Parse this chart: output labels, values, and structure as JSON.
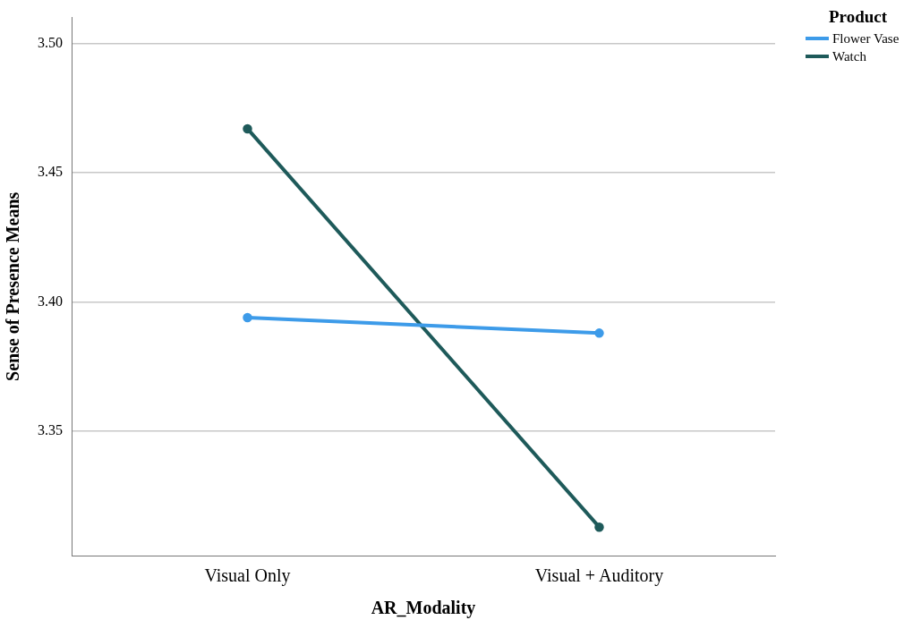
{
  "chart_data": {
    "type": "line",
    "xlabel": "AR_Modality",
    "ylabel": "Sense of Presence Means",
    "legend_title": "Product",
    "categories": [
      "Visual Only",
      "Visual + Auditory"
    ],
    "series": [
      {
        "name": "Flower Vase",
        "color": "#3d9be9",
        "values": [
          3.394,
          3.388
        ]
      },
      {
        "name": "Watch",
        "color": "#1e5a5a",
        "values": [
          3.467,
          3.313
        ]
      }
    ],
    "ylim": [
      3.302,
      3.51
    ],
    "yticks": [
      3.35,
      {
        "value": 3.4,
        "label": "3.40"
      },
      3.45,
      {
        "value": 3.5,
        "label": "3.50"
      }
    ],
    "grid": "y",
    "legend": "top right",
    "marker": "circle",
    "line_style": "solid"
  }
}
